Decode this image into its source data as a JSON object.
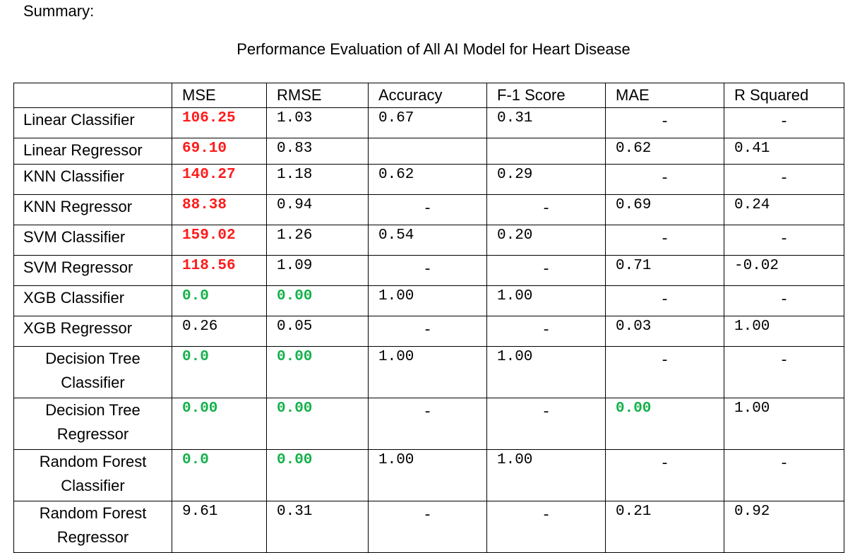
{
  "summary_label": "Summary:",
  "title": "Performance Evaluation of All AI Model for Heart Disease",
  "table": {
    "headers": [
      "",
      "MSE",
      "RMSE",
      "Accuracy",
      "F-1 Score",
      "MAE",
      "R Squared"
    ],
    "rows": [
      {
        "model": "Linear Classifier",
        "cells": [
          {
            "v": "106.25",
            "c": "red"
          },
          {
            "v": "1.03"
          },
          {
            "v": "0.67"
          },
          {
            "v": "0.31"
          },
          {
            "v": "-",
            "dash": true
          },
          {
            "v": "-",
            "dash": true
          }
        ]
      },
      {
        "model": "Linear Regressor",
        "cells": [
          {
            "v": "69.10",
            "c": "red"
          },
          {
            "v": "0.83"
          },
          {
            "v": ""
          },
          {
            "v": ""
          },
          {
            "v": "0.62"
          },
          {
            "v": "0.41"
          }
        ]
      },
      {
        "model": "KNN Classifier",
        "cells": [
          {
            "v": "140.27",
            "c": "red"
          },
          {
            "v": "1.18"
          },
          {
            "v": "0.62"
          },
          {
            "v": "0.29"
          },
          {
            "v": "-",
            "dash": true
          },
          {
            "v": "-",
            "dash": true
          }
        ]
      },
      {
        "model": "KNN Regressor",
        "cells": [
          {
            "v": "88.38",
            "c": "red"
          },
          {
            "v": "0.94"
          },
          {
            "v": "-",
            "dash": true
          },
          {
            "v": "-",
            "dash": true
          },
          {
            "v": "0.69"
          },
          {
            "v": "0.24"
          }
        ]
      },
      {
        "model": "SVM Classifier",
        "cells": [
          {
            "v": "159.02",
            "c": "red"
          },
          {
            "v": "1.26"
          },
          {
            "v": "0.54"
          },
          {
            "v": "0.20"
          },
          {
            "v": "-",
            "dash": true
          },
          {
            "v": "-",
            "dash": true
          }
        ]
      },
      {
        "model": "SVM Regressor",
        "cells": [
          {
            "v": "118.56",
            "c": "red"
          },
          {
            "v": "1.09"
          },
          {
            "v": "-",
            "dash": true
          },
          {
            "v": "-",
            "dash": true
          },
          {
            "v": "0.71"
          },
          {
            "v": "-0.02"
          }
        ]
      },
      {
        "model": "XGB Classifier",
        "cells": [
          {
            "v": "0.0",
            "c": "green"
          },
          {
            "v": "0.00",
            "c": "green"
          },
          {
            "v": "1.00"
          },
          {
            "v": "1.00"
          },
          {
            "v": "-",
            "dash": true
          },
          {
            "v": "-",
            "dash": true
          }
        ]
      },
      {
        "model": "XGB Regressor",
        "cells": [
          {
            "v": "0.26"
          },
          {
            "v": "0.05"
          },
          {
            "v": "-",
            "dash": true
          },
          {
            "v": "-",
            "dash": true
          },
          {
            "v": "0.03"
          },
          {
            "v": "1.00"
          }
        ]
      },
      {
        "model": "Decision Tree Classifier",
        "tall": true,
        "cells": [
          {
            "v": "0.0",
            "c": "green"
          },
          {
            "v": "0.00",
            "c": "green"
          },
          {
            "v": "1.00"
          },
          {
            "v": "1.00"
          },
          {
            "v": "-",
            "dash": true
          },
          {
            "v": "-",
            "dash": true
          }
        ]
      },
      {
        "model": "Decision Tree Regressor",
        "tall": true,
        "cells": [
          {
            "v": "0.00",
            "c": "green"
          },
          {
            "v": "0.00",
            "c": "green"
          },
          {
            "v": "-",
            "dash": true
          },
          {
            "v": "-",
            "dash": true
          },
          {
            "v": "0.00",
            "c": "green"
          },
          {
            "v": "1.00"
          }
        ]
      },
      {
        "model": "Random Forest Classifier",
        "tall": true,
        "cells": [
          {
            "v": "0.0",
            "c": "green"
          },
          {
            "v": "0.00",
            "c": "green"
          },
          {
            "v": "1.00"
          },
          {
            "v": "1.00"
          },
          {
            "v": "-",
            "dash": true
          },
          {
            "v": "-",
            "dash": true
          }
        ]
      },
      {
        "model": "Random Forest Regressor",
        "tall": true,
        "cells": [
          {
            "v": "9.61"
          },
          {
            "v": "0.31"
          },
          {
            "v": "-",
            "dash": true
          },
          {
            "v": "-",
            "dash": true
          },
          {
            "v": "0.21"
          },
          {
            "v": "0.92"
          }
        ]
      }
    ]
  }
}
